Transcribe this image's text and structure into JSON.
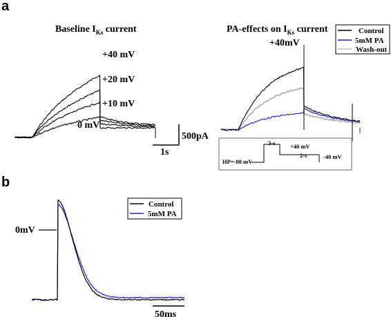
{
  "panel_a_letter": "a",
  "panel_b_letter": "b",
  "chart_data": [
    {
      "type": "line",
      "panel": "a-left",
      "title": "Baseline I",
      "title_sub": "Ks",
      "title_tail": " current",
      "series": [
        {
          "name": "+40 mV",
          "color": "#000000",
          "peak_pA": 1550,
          "tail_start_pA": 500
        },
        {
          "name": "+20 mV",
          "color": "#000000",
          "peak_pA": 1170,
          "tail_start_pA": 420
        },
        {
          "name": "+10 mV",
          "color": "#000000",
          "peak_pA": 870,
          "tail_start_pA": 330
        },
        {
          "name": "0 mV",
          "color": "#000000",
          "peak_pA": 500,
          "tail_start_pA": 230
        }
      ],
      "scalebar": {
        "y_label": "500pA",
        "x_label": "1s"
      }
    },
    {
      "type": "line",
      "panel": "a-right",
      "title": "PA-effects on I",
      "title_sub": "Ks",
      "title_tail": " current",
      "step_label": "+40mV",
      "legend": [
        "Control",
        "5mM PA",
        "Wash-out"
      ],
      "series": [
        {
          "name": "Control",
          "color": "#000000",
          "peak_pA": 1500
        },
        {
          "name": "5mM PA",
          "color": "#1f1fd0",
          "peak_pA": 400
        },
        {
          "name": "Wash-out",
          "color": "#b8b8b8",
          "peak_pA": 1010
        }
      ],
      "protocol": {
        "hp": "HP=-80 mV",
        "step": "+40 mV",
        "step_dur": "3-s",
        "tail": "-40 mV",
        "tail_dur": "2-s"
      }
    },
    {
      "type": "line",
      "panel": "b",
      "legend": [
        "Control",
        "5mM PA"
      ],
      "series": [
        {
          "name": "Control",
          "color": "#000000"
        },
        {
          "name": "5mM PA",
          "color": "#1f1fd0"
        }
      ],
      "ref_label": "0mV",
      "scalebar": {
        "x_label": "50ms"
      }
    }
  ]
}
